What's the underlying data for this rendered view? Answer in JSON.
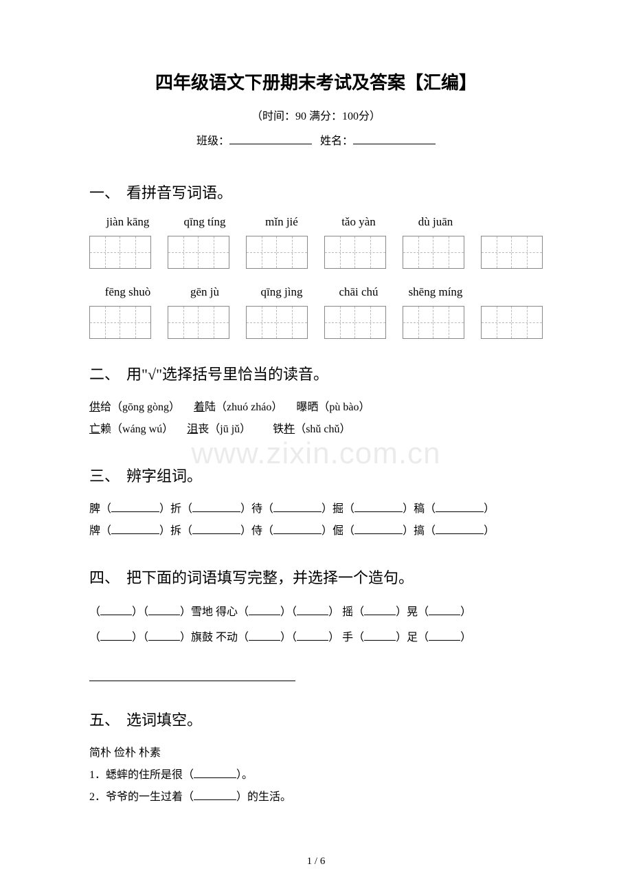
{
  "title": "四年级语文下册期末考试及答案【汇编】",
  "time_score": "（时间：90   满分：100分）",
  "class_label": "班级：",
  "name_label": "姓名：",
  "section1": {
    "num": "一、",
    "title": "看拼音写词语。"
  },
  "pinyin_row1": [
    "jiàn kāng",
    "qīng tíng",
    "mǐn jié",
    "tǎo yàn",
    "dù juān"
  ],
  "pinyin_row2": [
    "fēng shuò",
    "gēn jù",
    "qīng jìng",
    "chāi chú",
    "shēng míng"
  ],
  "section2": {
    "num": "二、",
    "title": "用\"√\"选择括号里恰当的读音。",
    "line1": [
      {
        "char": "供",
        "tail": "给（gōng gòng）"
      },
      {
        "char": "着",
        "tail": "陆（zhuó zháo）"
      },
      {
        "tail": "曝晒（pù bào）"
      }
    ],
    "line2": [
      {
        "char": "亡",
        "tail": "赖（wáng wú）"
      },
      {
        "char": "沮",
        "tail": "丧（jū jǔ）"
      },
      {
        "pre": "铁",
        "char": "杵",
        "tail": "（shǔ chǔ）"
      }
    ]
  },
  "section3": {
    "num": "三、",
    "title": "辨字组词。",
    "row1": [
      "脾（",
      "）折（",
      "）待（",
      "）掘（",
      "）稿（",
      "）"
    ],
    "row2": [
      "牌（",
      "）拆（",
      "）侍（",
      "）倔（",
      "）搞（",
      "）"
    ]
  },
  "section4": {
    "num": "四、",
    "title": "把下面的词语填写完整，并选择一个造句。",
    "row1": {
      "a1": "（",
      "a2": "）（",
      "a3": "）雪地   得心（",
      "a4": "）（",
      "a5": "）   摇（",
      "a6": "）晃（",
      "a7": "）"
    },
    "row2": {
      "a1": "（",
      "a2": "）（",
      "a3": "）旗鼓   不动（",
      "a4": "）（",
      "a5": "）   手（",
      "a6": "）足（",
      "a7": "）"
    }
  },
  "section5": {
    "num": "五、",
    "title": "选词填空。",
    "words": "简朴   俭朴   朴素",
    "q1": "1．蟋蟀的住所是很（",
    "q1b": "）。",
    "q2": "2．爷爷的一生过着（",
    "q2b": "）的生活。"
  },
  "watermark": "www.zixin.com.cn",
  "page_num": "1 / 6",
  "colors": {
    "text": "#000000",
    "bg": "#ffffff",
    "box_border": "#888888",
    "dash": "#bbbbbb",
    "wm": "rgba(0,0,0,0.08)"
  }
}
